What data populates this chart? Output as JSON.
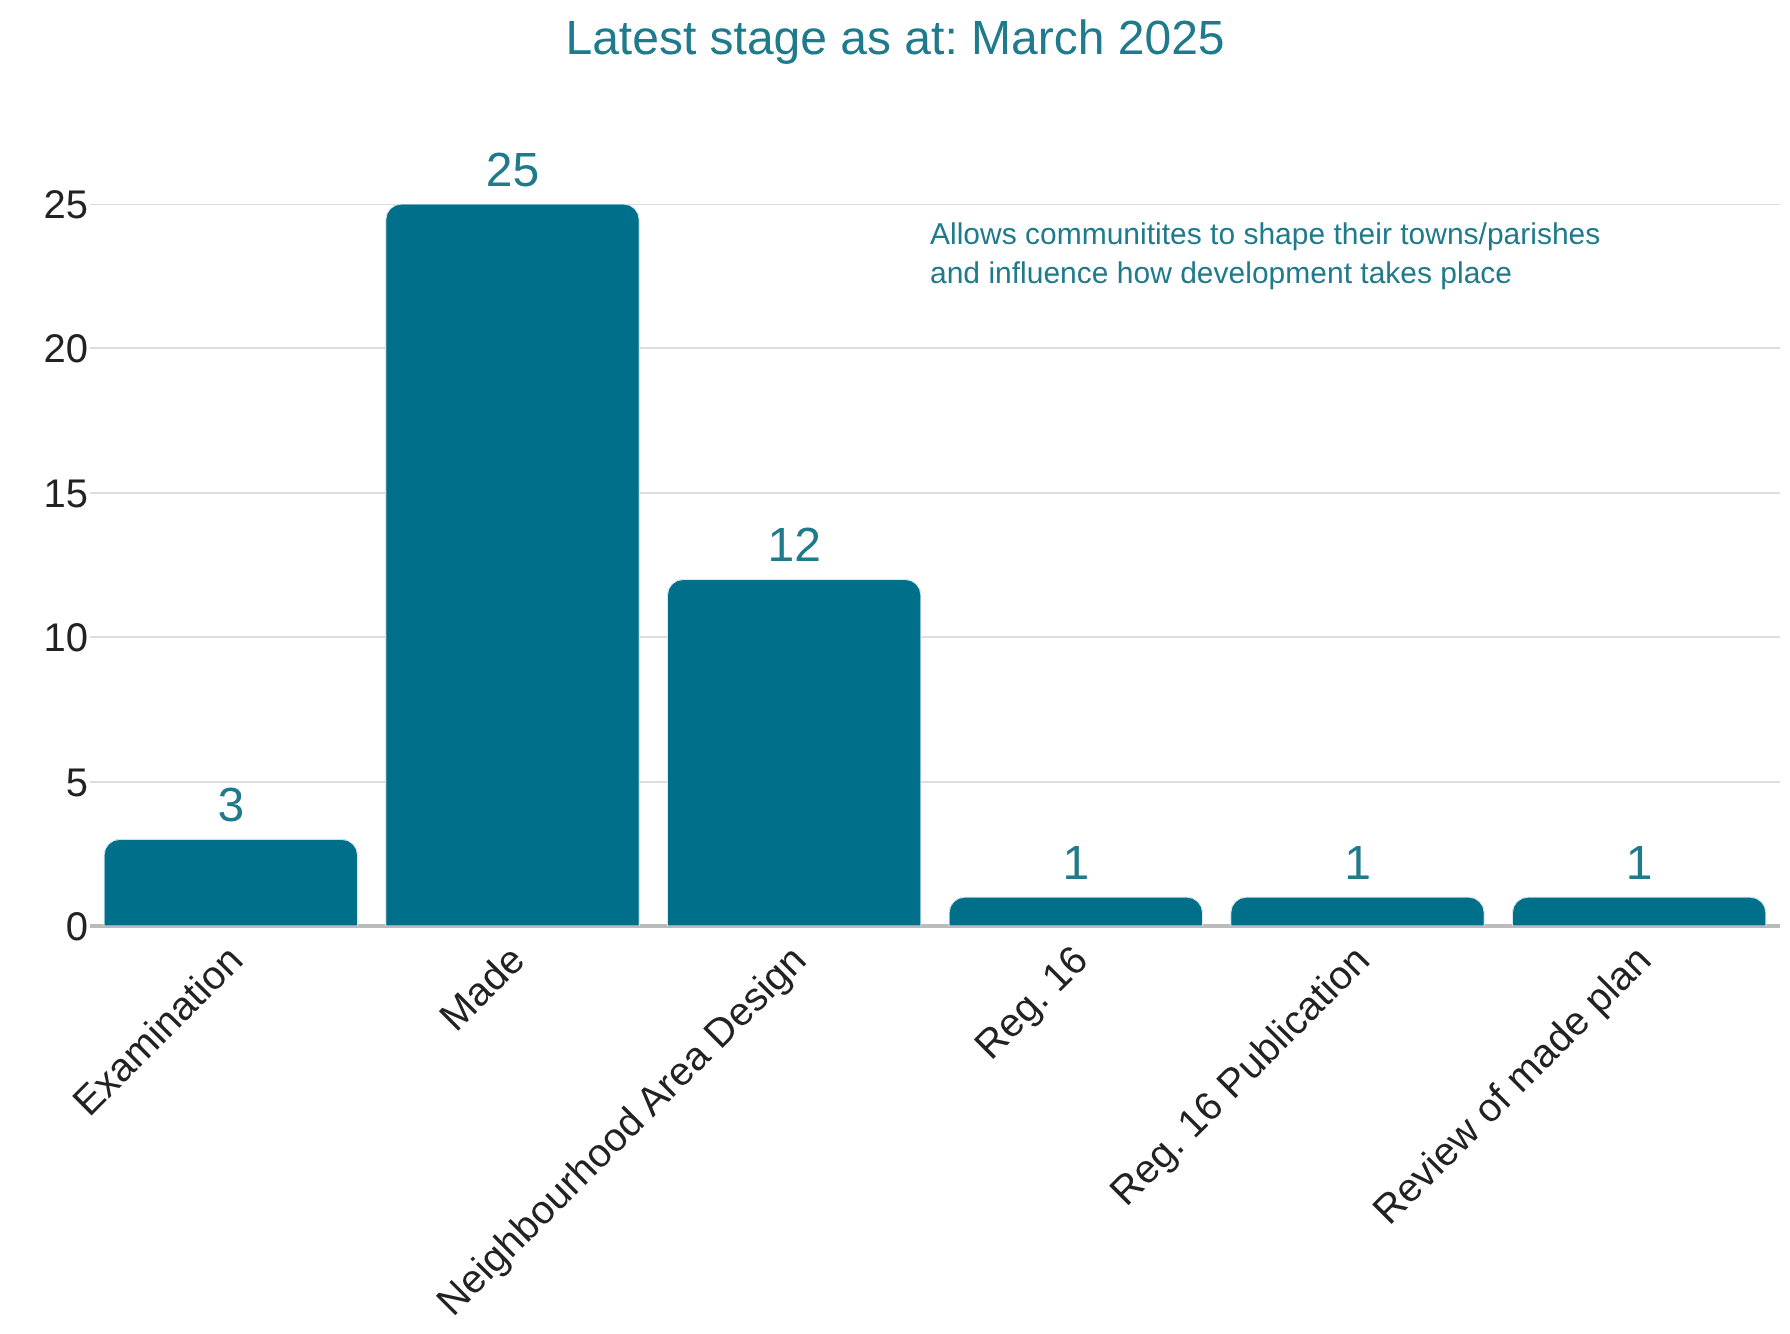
{
  "chart_data": {
    "type": "bar",
    "title": "Latest stage as at: March 2025",
    "categories": [
      "Examination",
      "Made",
      "Neighbourhood Area Design",
      "Reg. 16",
      "Reg. 16 Publication",
      "Review of made plan"
    ],
    "values": [
      3,
      25,
      12,
      1,
      1,
      1
    ],
    "color": "#006f8a",
    "ylim": [
      0,
      25
    ],
    "yticks": [
      0,
      5,
      10,
      15,
      20,
      25
    ],
    "grid": "y",
    "data_labels": true,
    "annotations": [
      "Allows communitites to shape their towns/parishes\nand influence how development takes place"
    ]
  }
}
